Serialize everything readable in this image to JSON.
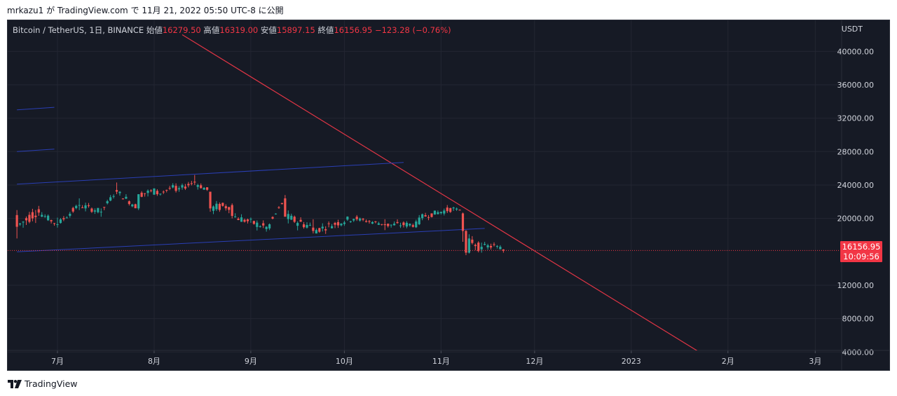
{
  "header": {
    "caption": "mrkazu1 が TradingView.com で 11月 21, 2022 05:50 UTC-8 に公開"
  },
  "footer": {
    "brand": "TradingView",
    "logo_icon": "tradingview-logo-icon"
  },
  "legend": {
    "symbol": "Bitcoin / TetherUS, 1日, BINANCE",
    "open_label": "始値",
    "open": "16279.50",
    "high_label": "高値",
    "high": "16319.00",
    "low_label": "安値",
    "low": "15897.15",
    "close_label": "終値",
    "close": "16156.95",
    "change": "−123.28 (−0.76%)"
  },
  "price_axis": {
    "unit": "USDT",
    "ticks": [
      "40000.00",
      "36000.00",
      "32000.00",
      "28000.00",
      "24000.00",
      "20000.00",
      "12000.00",
      "8000.00",
      "4000.00"
    ]
  },
  "time_axis": {
    "ticks": [
      "7月",
      "8月",
      "9月",
      "10月",
      "11月",
      "12月",
      "2023",
      "2月",
      "3月"
    ]
  },
  "current_price": {
    "price": "16156.95",
    "countdown": "10:09:56"
  },
  "colors": {
    "background": "#161a25",
    "up": "#26a69a",
    "down": "#ef5350",
    "trendline_red": "#e03545",
    "channel_blue": "#2a3fb5",
    "grid": "#232632",
    "axis_text": "#d1d4dc",
    "price_tag": "#f23645"
  },
  "chart_data": {
    "type": "candlestick",
    "title": "Bitcoin / TetherUS, 1日, BINANCE",
    "y_unit": "USDT",
    "ylim": [
      3000,
      42000
    ],
    "grid": true,
    "x_ticks": [
      "7月",
      "8月",
      "9月",
      "10月",
      "11月",
      "12月",
      "2023",
      "2月",
      "3月"
    ],
    "last_price": 16156.95,
    "ohlc_sketch": [
      {
        "date": "2022-06-18",
        "o": 20400,
        "h": 21000,
        "l": 17600,
        "c": 19000
      },
      {
        "date": "2022-06-25",
        "o": 21100,
        "h": 21500,
        "l": 20300,
        "c": 20700
      },
      {
        "date": "2022-07-01",
        "o": 19300,
        "h": 20100,
        "l": 18900,
        "c": 19300
      },
      {
        "date": "2022-07-08",
        "o": 21600,
        "h": 22400,
        "l": 21000,
        "c": 21600
      },
      {
        "date": "2022-07-15",
        "o": 20800,
        "h": 21200,
        "l": 20200,
        "c": 20800
      },
      {
        "date": "2022-07-20",
        "o": 23400,
        "h": 24300,
        "l": 22900,
        "c": 23200
      },
      {
        "date": "2022-07-27",
        "o": 21200,
        "h": 22900,
        "l": 21000,
        "c": 22900
      },
      {
        "date": "2022-08-02",
        "o": 23300,
        "h": 23500,
        "l": 22700,
        "c": 22900
      },
      {
        "date": "2022-08-08",
        "o": 23900,
        "h": 24200,
        "l": 23100,
        "c": 23300
      },
      {
        "date": "2022-08-14",
        "o": 24400,
        "h": 25200,
        "l": 24000,
        "c": 24300
      },
      {
        "date": "2022-08-19",
        "o": 23200,
        "h": 23200,
        "l": 20800,
        "c": 21200
      },
      {
        "date": "2022-08-26",
        "o": 21600,
        "h": 21800,
        "l": 20000,
        "c": 20300
      },
      {
        "date": "2022-09-07",
        "o": 18800,
        "h": 19400,
        "l": 18600,
        "c": 19300
      },
      {
        "date": "2022-09-12",
        "o": 22400,
        "h": 22800,
        "l": 20300,
        "c": 20200
      },
      {
        "date": "2022-09-21",
        "o": 18900,
        "h": 19900,
        "l": 18200,
        "c": 18500
      },
      {
        "date": "2022-10-05",
        "o": 20200,
        "h": 20400,
        "l": 19700,
        "c": 19900
      },
      {
        "date": "2022-10-14",
        "o": 19300,
        "h": 19900,
        "l": 18600,
        "c": 19200
      },
      {
        "date": "2022-10-25",
        "o": 19300,
        "h": 20400,
        "l": 19200,
        "c": 20100
      },
      {
        "date": "2022-11-05",
        "o": 21200,
        "h": 21400,
        "l": 20900,
        "c": 21300
      },
      {
        "date": "2022-11-08",
        "o": 20600,
        "h": 20700,
        "l": 17200,
        "c": 18500
      },
      {
        "date": "2022-11-09",
        "o": 18500,
        "h": 18600,
        "l": 15600,
        "c": 15900
      },
      {
        "date": "2022-11-10",
        "o": 15900,
        "h": 18100,
        "l": 15800,
        "c": 17600
      },
      {
        "date": "2022-11-14",
        "o": 16300,
        "h": 17100,
        "l": 15900,
        "c": 16600
      },
      {
        "date": "2022-11-19",
        "o": 16700,
        "h": 16800,
        "l": 16400,
        "c": 16700
      },
      {
        "date": "2022-11-21",
        "o": 16279.5,
        "h": 16319,
        "l": 15897.15,
        "c": 16156.95
      }
    ],
    "overlays": [
      {
        "name": "",
        "kind": "trendline",
        "color": "#e03545",
        "from": {
          "date": "2022-08-10",
          "price": 42000
        },
        "to": {
          "date": "2023-01-25",
          "price": 3500
        }
      },
      {
        "name": "",
        "kind": "trendline",
        "color": "#2a3fb5",
        "from": {
          "date": "2022-06-18",
          "price": 16000
        },
        "to": {
          "date": "2022-11-15",
          "price": 18800
        }
      },
      {
        "name": "",
        "kind": "trendline",
        "color": "#2a3fb5",
        "from": {
          "date": "2022-06-18",
          "price": 24100
        },
        "to": {
          "date": "2022-10-20",
          "price": 26700
        }
      },
      {
        "name": "",
        "kind": "trendline",
        "color": "#2a3fb5",
        "from": {
          "date": "2022-06-18",
          "price": 28000
        },
        "to": {
          "date": "2022-06-30",
          "price": 28300
        }
      },
      {
        "name": "",
        "kind": "trendline",
        "color": "#2a3fb5",
        "from": {
          "date": "2022-06-18",
          "price": 33000
        },
        "to": {
          "date": "2022-06-30",
          "price": 33300
        }
      }
    ]
  }
}
